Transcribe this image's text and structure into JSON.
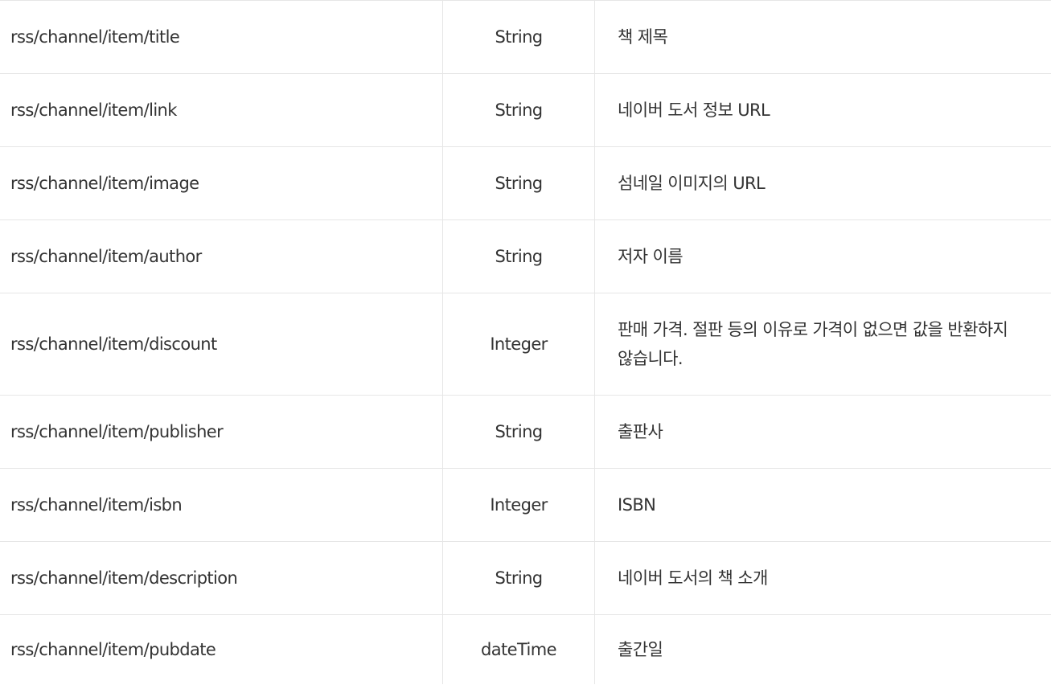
{
  "rows": [
    {
      "name": "rss/channel/item/title",
      "type": "String",
      "description": "책 제목"
    },
    {
      "name": "rss/channel/item/link",
      "type": "String",
      "description": "네이버 도서 정보 URL"
    },
    {
      "name": "rss/channel/item/image",
      "type": "String",
      "description": "섬네일 이미지의 URL"
    },
    {
      "name": "rss/channel/item/author",
      "type": "String",
      "description": "저자 이름"
    },
    {
      "name": "rss/channel/item/discount",
      "type": "Integer",
      "description": "판매 가격. 절판 등의 이유로 가격이 없으면 값을 반환하지 않습니다."
    },
    {
      "name": "rss/channel/item/publisher",
      "type": "String",
      "description": "출판사"
    },
    {
      "name": "rss/channel/item/isbn",
      "type": "Integer",
      "description": "ISBN"
    },
    {
      "name": "rss/channel/item/description",
      "type": "String",
      "description": "네이버 도서의 책 소개"
    },
    {
      "name": "rss/channel/item/pubdate",
      "type": "dateTime",
      "description": "출간일"
    }
  ]
}
